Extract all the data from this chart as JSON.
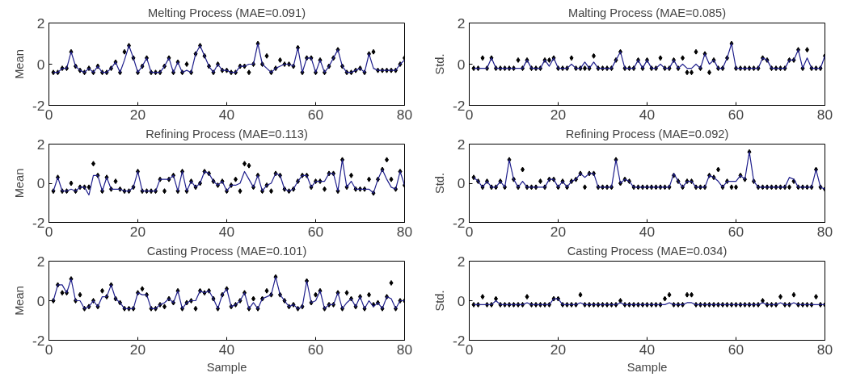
{
  "chart_data": [
    {
      "type": "line",
      "title": "Melting Process (MAE=0.091)",
      "ylabel": "Mean",
      "xlim": [
        0,
        80
      ],
      "ylim": [
        -2,
        2
      ],
      "xticks": [
        0,
        20,
        40,
        60,
        80
      ],
      "yticks": [
        -2,
        0,
        2
      ],
      "grid": false,
      "marker": "diamond",
      "x": [
        1,
        2,
        3,
        4,
        5,
        6,
        7,
        8,
        9,
        10,
        11,
        12,
        13,
        14,
        15,
        16,
        17,
        18,
        19,
        20,
        21,
        22,
        23,
        24,
        25,
        26,
        27,
        28,
        29,
        30,
        31,
        32,
        33,
        34,
        35,
        36,
        37,
        38,
        39,
        40,
        41,
        42,
        43,
        44,
        45,
        46,
        47,
        48,
        49,
        50,
        51,
        52,
        53,
        54,
        55,
        56,
        57,
        58,
        59,
        60,
        61,
        62,
        63,
        64,
        65,
        66,
        67,
        68,
        69,
        70,
        71,
        72,
        73,
        74,
        75,
        76,
        77,
        78,
        79,
        80
      ],
      "series": [
        {
          "marker": "none",
          "color": "#1f1f8c",
          "values": [
            -0.4,
            -0.4,
            -0.2,
            -0.2,
            0.6,
            -0.1,
            -0.3,
            -0.4,
            -0.2,
            -0.4,
            -0.1,
            -0.4,
            -0.4,
            -0.2,
            0.1,
            -0.4,
            0.2,
            0.9,
            0.3,
            -0.4,
            -0.1,
            0.3,
            -0.4,
            -0.4,
            -0.4,
            -0.1,
            0.3,
            -0.4,
            0.1,
            -0.4,
            -0.3,
            -0.4,
            0.5,
            0.9,
            0.4,
            -0.1,
            -0.4,
            0,
            -0.3,
            -0.3,
            -0.4,
            -0.4,
            -0.1,
            -0.1,
            0,
            0,
            1.0,
            0,
            -0.2,
            -0.4,
            -0.2,
            -0.1,
            0,
            0,
            -0.1,
            0.8,
            -0.4,
            0.3,
            0.3,
            -0.4,
            0.2,
            -0.4,
            -0.1,
            0.3,
            0.7,
            -0.1,
            -0.4,
            -0.4,
            -0.3,
            -0.2,
            -0.4,
            0.5,
            -0.2,
            -0.3,
            -0.3,
            -0.3,
            -0.3,
            -0.3,
            0,
            0.2
          ]
        },
        {
          "type": "scatter",
          "color": "#000000",
          "values": [
            -0.4,
            -0.4,
            -0.2,
            -0.2,
            0.6,
            -0.1,
            -0.3,
            -0.4,
            -0.2,
            -0.4,
            -0.1,
            -0.4,
            -0.4,
            -0.2,
            0.1,
            -0.4,
            0.6,
            0.9,
            0.3,
            -0.4,
            -0.1,
            0.3,
            -0.4,
            -0.4,
            -0.4,
            -0.1,
            0.3,
            -0.4,
            0.1,
            -0.4,
            0,
            -0.4,
            0.5,
            0.9,
            0.4,
            -0.1,
            -0.4,
            0,
            -0.3,
            -0.3,
            -0.4,
            -0.4,
            -0.1,
            -0.1,
            -0.4,
            0,
            1.0,
            0,
            0.4,
            -0.4,
            -0.2,
            0.2,
            0,
            0,
            -0.1,
            0.8,
            -0.4,
            0.3,
            0.3,
            -0.4,
            0.2,
            -0.4,
            -0.1,
            0.3,
            0.7,
            -0.1,
            -0.4,
            -0.4,
            -0.3,
            -0.2,
            -0.4,
            0.5,
            0.6,
            -0.3,
            -0.3,
            -0.3,
            -0.3,
            -0.3,
            0,
            0.3
          ]
        }
      ]
    },
    {
      "type": "line",
      "title": "Malting Process (MAE=0.085)",
      "ylabel": "Std.",
      "xlim": [
        0,
        80
      ],
      "ylim": [
        -2,
        2
      ],
      "xticks": [
        0,
        20,
        40,
        60,
        80
      ],
      "yticks": [
        -2,
        0,
        2
      ],
      "grid": false,
      "marker": "diamond",
      "x": [
        1,
        2,
        3,
        4,
        5,
        6,
        7,
        8,
        9,
        10,
        11,
        12,
        13,
        14,
        15,
        16,
        17,
        18,
        19,
        20,
        21,
        22,
        23,
        24,
        25,
        26,
        27,
        28,
        29,
        30,
        31,
        32,
        33,
        34,
        35,
        36,
        37,
        38,
        39,
        40,
        41,
        42,
        43,
        44,
        45,
        46,
        47,
        48,
        49,
        50,
        51,
        52,
        53,
        54,
        55,
        56,
        57,
        58,
        59,
        60,
        61,
        62,
        63,
        64,
        65,
        66,
        67,
        68,
        69,
        70,
        71,
        72,
        73,
        74,
        75,
        76,
        77,
        78,
        79,
        80
      ],
      "series": [
        {
          "marker": "none",
          "color": "#1f1f8c",
          "values": [
            -0.2,
            -0.2,
            -0.2,
            -0.2,
            0.3,
            -0.2,
            -0.2,
            -0.2,
            -0.2,
            -0.2,
            -0.2,
            -0.2,
            0.2,
            -0.2,
            -0.2,
            -0.2,
            0.2,
            -0.1,
            0.3,
            -0.2,
            -0.2,
            -0.2,
            0,
            -0.2,
            -0.2,
            0.1,
            -0.2,
            0.1,
            -0.2,
            -0.2,
            -0.2,
            -0.2,
            0.2,
            0.6,
            -0.2,
            -0.2,
            -0.2,
            0.2,
            -0.2,
            0.2,
            -0.2,
            -0.2,
            0,
            -0.2,
            -0.2,
            0.2,
            -0.2,
            0,
            -0.2,
            -0.2,
            0,
            -0.2,
            0.5,
            0,
            0.2,
            -0.2,
            -0.2,
            0.3,
            1.0,
            -0.2,
            -0.2,
            -0.2,
            -0.2,
            -0.2,
            -0.2,
            0.3,
            0.2,
            -0.2,
            -0.2,
            -0.2,
            -0.2,
            0.2,
            0.2,
            0.7,
            -0.2,
            0.3,
            -0.2,
            -0.2,
            -0.2,
            0.4
          ]
        },
        {
          "type": "scatter",
          "color": "#000000",
          "values": [
            -0.2,
            -0.2,
            0.3,
            -0.2,
            0.3,
            -0.2,
            -0.2,
            -0.2,
            -0.2,
            -0.2,
            0.2,
            -0.2,
            0.2,
            -0.2,
            -0.2,
            -0.2,
            0.2,
            0.2,
            0.3,
            -0.2,
            -0.2,
            -0.2,
            0.3,
            -0.2,
            -0.2,
            -0.2,
            -0.2,
            0.4,
            -0.2,
            -0.2,
            -0.2,
            -0.2,
            0.2,
            0.6,
            -0.2,
            -0.2,
            -0.2,
            0.2,
            -0.2,
            0.2,
            -0.2,
            -0.2,
            0.3,
            -0.2,
            -0.2,
            0.2,
            -0.2,
            0.3,
            -0.4,
            -0.4,
            0.6,
            -0.2,
            0.5,
            -0.4,
            0.2,
            -0.2,
            -0.2,
            0.3,
            1.0,
            -0.2,
            -0.2,
            -0.2,
            -0.2,
            -0.2,
            -0.2,
            0.3,
            0.2,
            -0.2,
            -0.2,
            -0.2,
            -0.2,
            0.2,
            0.2,
            0.7,
            -0.2,
            0.7,
            -0.2,
            -0.2,
            -0.2,
            0.4
          ]
        }
      ]
    },
    {
      "type": "line",
      "title": "Refining Process (MAE=0.113)",
      "ylabel": "Mean",
      "xlim": [
        0,
        80
      ],
      "ylim": [
        -2,
        2
      ],
      "xticks": [
        0,
        20,
        40,
        60,
        80
      ],
      "yticks": [
        -2,
        0,
        2
      ],
      "grid": false,
      "marker": "diamond",
      "x": [
        1,
        2,
        3,
        4,
        5,
        6,
        7,
        8,
        9,
        10,
        11,
        12,
        13,
        14,
        15,
        16,
        17,
        18,
        19,
        20,
        21,
        22,
        23,
        24,
        25,
        26,
        27,
        28,
        29,
        30,
        31,
        32,
        33,
        34,
        35,
        36,
        37,
        38,
        39,
        40,
        41,
        42,
        43,
        44,
        45,
        46,
        47,
        48,
        49,
        50,
        51,
        52,
        53,
        54,
        55,
        56,
        57,
        58,
        59,
        60,
        61,
        62,
        63,
        64,
        65,
        66,
        67,
        68,
        69,
        70,
        71,
        72,
        73,
        74,
        75,
        76,
        77,
        78,
        79,
        80
      ],
      "series": [
        {
          "marker": "none",
          "color": "#1f1f8c",
          "values": [
            -0.4,
            0.3,
            -0.4,
            -0.4,
            -0.3,
            -0.4,
            -0.2,
            -0.2,
            -0.6,
            0.4,
            0.4,
            -0.4,
            0.3,
            -0.3,
            -0.3,
            -0.3,
            -0.4,
            -0.4,
            -0.2,
            0.6,
            -0.4,
            -0.4,
            -0.4,
            -0.4,
            0.2,
            0.2,
            0.2,
            0.4,
            -0.4,
            0.6,
            -0.4,
            0.1,
            -0.2,
            0,
            0.6,
            0.5,
            0.1,
            -0.1,
            0.1,
            -0.4,
            -0.1,
            -0.1,
            0,
            0.6,
            0.2,
            -0.2,
            0.4,
            -0.4,
            -0.1,
            0,
            0.5,
            0.4,
            -0.3,
            -0.4,
            -0.3,
            0.1,
            0.4,
            0.4,
            -0.2,
            0.1,
            0.1,
            0.1,
            0.5,
            0.5,
            -0.4,
            1.2,
            -0.2,
            0.1,
            -0.3,
            -0.3,
            -0.3,
            -0.3,
            -0.5,
            0.2,
            0.7,
            0.2,
            -0.2,
            -0.3,
            0.6,
            -0.1
          ]
        },
        {
          "type": "scatter",
          "color": "#000000",
          "values": [
            -0.4,
            0.3,
            -0.4,
            -0.4,
            0,
            -0.4,
            -0.2,
            -0.2,
            -0.2,
            1.0,
            0.4,
            -0.4,
            0.3,
            -0.3,
            0.1,
            -0.3,
            -0.4,
            -0.4,
            -0.2,
            0.6,
            -0.4,
            -0.4,
            -0.4,
            -0.4,
            0.2,
            -0.4,
            0.2,
            0.4,
            -0.4,
            0.6,
            -0.4,
            0.1,
            -0.2,
            0,
            0.6,
            0.5,
            0.1,
            -0.1,
            0.1,
            -0.4,
            -0.1,
            0.2,
            -0.4,
            1.0,
            0.9,
            -0.2,
            0.4,
            -0.4,
            -0.1,
            -0.4,
            0.5,
            0.4,
            -0.3,
            -0.4,
            -0.3,
            0.1,
            0.4,
            0.4,
            -0.2,
            0.1,
            0.1,
            -0.3,
            0.5,
            0.5,
            -0.4,
            1.2,
            -0.2,
            0.4,
            -0.3,
            -0.3,
            -0.3,
            0.2,
            -0.5,
            0.2,
            0.7,
            1.2,
            0.2,
            -0.3,
            0.6,
            -0.1
          ]
        }
      ]
    },
    {
      "type": "line",
      "title": "Refining Process (MAE=0.092)",
      "ylabel": "Std.",
      "xlim": [
        0,
        80
      ],
      "ylim": [
        -2,
        2
      ],
      "xticks": [
        0,
        20,
        40,
        60,
        80
      ],
      "yticks": [
        -2,
        0,
        2
      ],
      "grid": false,
      "marker": "diamond",
      "x": [
        1,
        2,
        3,
        4,
        5,
        6,
        7,
        8,
        9,
        10,
        11,
        12,
        13,
        14,
        15,
        16,
        17,
        18,
        19,
        20,
        21,
        22,
        23,
        24,
        25,
        26,
        27,
        28,
        29,
        30,
        31,
        32,
        33,
        34,
        35,
        36,
        37,
        38,
        39,
        40,
        41,
        42,
        43,
        44,
        45,
        46,
        47,
        48,
        49,
        50,
        51,
        52,
        53,
        54,
        55,
        56,
        57,
        58,
        59,
        60,
        61,
        62,
        63,
        64,
        65,
        66,
        67,
        68,
        69,
        70,
        71,
        72,
        73,
        74,
        75,
        76,
        77,
        78,
        79,
        80
      ],
      "series": [
        {
          "marker": "none",
          "color": "#1f1f8c",
          "values": [
            0.3,
            0.1,
            -0.2,
            0.1,
            -0.2,
            -0.2,
            0.1,
            -0.2,
            1.2,
            0.2,
            -0.2,
            0.1,
            -0.2,
            -0.2,
            -0.2,
            -0.2,
            -0.2,
            0.2,
            0.2,
            -0.2,
            0.1,
            -0.2,
            0.1,
            0.2,
            0.5,
            0.3,
            0.5,
            0.5,
            -0.2,
            -0.2,
            -0.2,
            -0.2,
            1.2,
            0,
            0.2,
            0.1,
            -0.2,
            -0.2,
            -0.2,
            -0.2,
            -0.2,
            -0.2,
            -0.2,
            -0.2,
            -0.2,
            0.5,
            0.1,
            -0.2,
            0.1,
            0.1,
            -0.2,
            -0.2,
            -0.2,
            0.4,
            0.3,
            0.1,
            -0.2,
            0.1,
            0.1,
            0.1,
            0.4,
            0.2,
            1.6,
            0.1,
            -0.2,
            -0.2,
            -0.2,
            -0.2,
            -0.2,
            -0.2,
            -0.2,
            0.3,
            0.2,
            -0.2,
            -0.2,
            -0.2,
            -0.2,
            0.7,
            -0.2,
            -0.3
          ]
        },
        {
          "type": "scatter",
          "color": "#000000",
          "values": [
            0.3,
            0.1,
            -0.2,
            0.1,
            -0.2,
            -0.2,
            0.1,
            -0.2,
            1.2,
            0.2,
            -0.2,
            0.7,
            -0.2,
            -0.2,
            -0.2,
            0.1,
            -0.2,
            0.2,
            0.2,
            -0.2,
            0.1,
            -0.2,
            0.1,
            0.2,
            0.5,
            -0.2,
            0.5,
            0.5,
            -0.2,
            -0.2,
            -0.2,
            -0.2,
            1.2,
            0,
            0.2,
            0.1,
            -0.2,
            -0.2,
            -0.2,
            -0.2,
            -0.2,
            -0.2,
            -0.2,
            -0.2,
            -0.2,
            0.4,
            0.1,
            -0.2,
            0.1,
            0.1,
            -0.2,
            -0.2,
            -0.2,
            0.4,
            0.3,
            0.7,
            -0.2,
            0.1,
            -0.2,
            -0.2,
            0.4,
            0.2,
            1.6,
            0.1,
            -0.2,
            -0.2,
            -0.2,
            -0.2,
            -0.2,
            -0.2,
            -0.2,
            -0.2,
            0.1,
            -0.2,
            -0.2,
            -0.2,
            -0.2,
            0.7,
            -0.2,
            -0.3
          ]
        }
      ]
    },
    {
      "type": "line",
      "title": "Casting Process (MAE=0.101)",
      "ylabel": "Mean",
      "xlabel": "Sample",
      "xlim": [
        0,
        80
      ],
      "ylim": [
        -2,
        2
      ],
      "xticks": [
        0,
        20,
        40,
        60,
        80
      ],
      "yticks": [
        -2,
        0,
        2
      ],
      "grid": false,
      "marker": "diamond",
      "x": [
        1,
        2,
        3,
        4,
        5,
        6,
        7,
        8,
        9,
        10,
        11,
        12,
        13,
        14,
        15,
        16,
        17,
        18,
        19,
        20,
        21,
        22,
        23,
        24,
        25,
        26,
        27,
        28,
        29,
        30,
        31,
        32,
        33,
        34,
        35,
        36,
        37,
        38,
        39,
        40,
        41,
        42,
        43,
        44,
        45,
        46,
        47,
        48,
        49,
        50,
        51,
        52,
        53,
        54,
        55,
        56,
        57,
        58,
        59,
        60,
        61,
        62,
        63,
        64,
        65,
        66,
        67,
        68,
        69,
        70,
        71,
        72,
        73,
        74,
        75,
        76,
        77,
        78,
        79,
        80
      ],
      "series": [
        {
          "marker": "none",
          "color": "#1f1f8c",
          "values": [
            0,
            0.8,
            0.8,
            0.4,
            1.1,
            0,
            0,
            -0.4,
            -0.3,
            0,
            -0.3,
            0.2,
            0.2,
            0.8,
            0.1,
            -0.1,
            -0.4,
            -0.4,
            -0.4,
            0.4,
            0.3,
            0.3,
            -0.4,
            -0.4,
            -0.2,
            -0.1,
            0.1,
            -0.1,
            0.5,
            -0.4,
            -0.1,
            0,
            0,
            0.5,
            0.4,
            0.5,
            0.1,
            -0.4,
            0.3,
            0.6,
            -0.3,
            -0.2,
            0,
            0.4,
            -0.4,
            -0.1,
            -0.4,
            0.1,
            0.2,
            0.3,
            1.2,
            0.3,
            0,
            -0.3,
            -0.2,
            -0.4,
            -0.3,
            1.0,
            -0.1,
            0,
            0.5,
            -0.4,
            -0.2,
            -0.2,
            0.4,
            -0.4,
            -0.1,
            0.1,
            -0.3,
            0.2,
            -0.4,
            0,
            -0.3,
            -0.1,
            -0.4,
            0.2,
            0.1,
            -0.4,
            0,
            0
          ]
        },
        {
          "type": "scatter",
          "color": "#000000",
          "values": [
            0,
            0.8,
            0.4,
            0.4,
            1.1,
            0,
            0.3,
            -0.4,
            -0.3,
            0,
            -0.3,
            0.5,
            0.2,
            0.8,
            0.1,
            -0.1,
            -0.4,
            -0.4,
            -0.4,
            0.4,
            0.6,
            0.3,
            -0.4,
            -0.4,
            -0.2,
            -0.3,
            0.1,
            -0.1,
            0.5,
            -0.4,
            -0.1,
            0,
            -0.4,
            0.5,
            0.4,
            0.5,
            0.1,
            -0.4,
            0.3,
            0.6,
            -0.3,
            -0.2,
            0,
            0.4,
            -0.4,
            0.1,
            -0.4,
            0.1,
            0.5,
            0.3,
            1.2,
            0.3,
            0,
            -0.3,
            -0.2,
            -0.4,
            -0.3,
            1.0,
            -0.1,
            0.3,
            0.5,
            -0.4,
            -0.2,
            -0.2,
            0.4,
            -0.4,
            0.4,
            0.1,
            -0.3,
            0.2,
            -0.4,
            0.3,
            -0.2,
            -0.1,
            -0.4,
            0.2,
            0.9,
            -0.4,
            0,
            0
          ]
        }
      ]
    },
    {
      "type": "line",
      "title": "Casting Process (MAE=0.034)",
      "ylabel": "Std.",
      "xlabel": "Sample",
      "xlim": [
        0,
        80
      ],
      "ylim": [
        -2,
        2
      ],
      "xticks": [
        0,
        20,
        40,
        60,
        80
      ],
      "yticks": [
        -2,
        0,
        2
      ],
      "grid": false,
      "marker": "diamond",
      "x": [
        1,
        2,
        3,
        4,
        5,
        6,
        7,
        8,
        9,
        10,
        11,
        12,
        13,
        14,
        15,
        16,
        17,
        18,
        19,
        20,
        21,
        22,
        23,
        24,
        25,
        26,
        27,
        28,
        29,
        30,
        31,
        32,
        33,
        34,
        35,
        36,
        37,
        38,
        39,
        40,
        41,
        42,
        43,
        44,
        45,
        46,
        47,
        48,
        49,
        50,
        51,
        52,
        53,
        54,
        55,
        56,
        57,
        58,
        59,
        60,
        61,
        62,
        63,
        64,
        65,
        66,
        67,
        68,
        69,
        70,
        71,
        72,
        73,
        74,
        75,
        76,
        77,
        78,
        79,
        80
      ],
      "series": [
        {
          "marker": "none",
          "color": "#1f1f8c",
          "values": [
            -0.2,
            -0.2,
            -0.2,
            -0.2,
            -0.2,
            0,
            -0.2,
            -0.2,
            -0.2,
            -0.2,
            -0.2,
            -0.2,
            -0.1,
            -0.2,
            -0.2,
            -0.2,
            -0.2,
            -0.2,
            0.1,
            0.1,
            -0.2,
            -0.2,
            -0.2,
            -0.2,
            -0.1,
            -0.2,
            -0.2,
            -0.2,
            -0.2,
            -0.2,
            -0.2,
            -0.2,
            -0.2,
            -0.1,
            -0.2,
            -0.2,
            -0.2,
            -0.2,
            -0.2,
            -0.2,
            -0.2,
            -0.2,
            -0.2,
            -0.2,
            -0.1,
            -0.2,
            -0.2,
            -0.2,
            -0.1,
            -0.1,
            -0.2,
            -0.2,
            -0.2,
            -0.2,
            -0.2,
            -0.2,
            -0.2,
            -0.2,
            -0.2,
            -0.2,
            -0.2,
            -0.2,
            -0.2,
            -0.2,
            -0.2,
            -0.1,
            -0.2,
            -0.2,
            -0.2,
            -0.1,
            -0.2,
            -0.2,
            -0.1,
            -0.2,
            -0.2,
            -0.2,
            -0.2,
            -0.2,
            -0.2,
            -0.2
          ]
        },
        {
          "type": "scatter",
          "color": "#000000",
          "values": [
            -0.2,
            -0.2,
            0.2,
            -0.2,
            -0.2,
            0.1,
            -0.2,
            -0.2,
            -0.2,
            -0.2,
            -0.2,
            -0.2,
            0.2,
            -0.2,
            -0.2,
            -0.2,
            -0.2,
            -0.2,
            0.1,
            0.1,
            -0.2,
            -0.2,
            -0.2,
            -0.2,
            0.3,
            -0.2,
            -0.2,
            -0.2,
            -0.2,
            -0.2,
            -0.2,
            -0.2,
            -0.2,
            0,
            -0.2,
            -0.2,
            -0.2,
            -0.2,
            -0.2,
            -0.2,
            -0.2,
            -0.2,
            -0.2,
            0.1,
            0.3,
            -0.2,
            -0.2,
            -0.2,
            0.3,
            0.3,
            -0.2,
            -0.2,
            -0.2,
            -0.2,
            -0.2,
            -0.2,
            -0.2,
            -0.2,
            -0.2,
            -0.2,
            -0.2,
            -0.2,
            -0.2,
            -0.2,
            -0.2,
            0,
            -0.2,
            -0.2,
            -0.2,
            0.2,
            -0.2,
            -0.2,
            0.3,
            -0.2,
            -0.2,
            -0.2,
            -0.2,
            0.2,
            -0.2,
            -0.2
          ]
        }
      ]
    }
  ]
}
